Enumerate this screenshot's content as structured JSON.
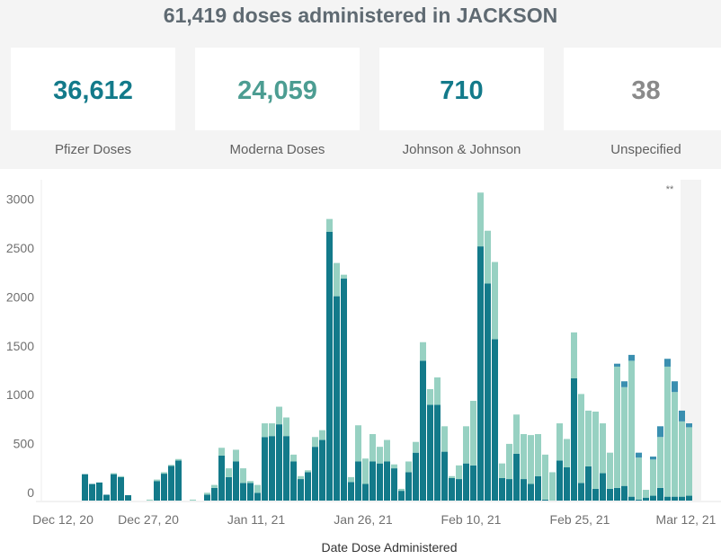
{
  "header": {
    "title": "61,419 doses administered in JACKSON"
  },
  "cards": [
    {
      "value": "36,612",
      "label": "Pfizer Doses",
      "color": "#137a8a"
    },
    {
      "value": "24,059",
      "label": "Moderna Doses",
      "color": "#4c9d92"
    },
    {
      "value": "710",
      "label": "Johnson & Johnson",
      "color": "#137a8a"
    },
    {
      "value": "38",
      "label": "Unspecified",
      "color": "#8a8a8a"
    }
  ],
  "chart_data": {
    "type": "bar",
    "stacked": true,
    "title": "",
    "xlabel": "Date Dose Administered",
    "ylabel": "",
    "ylim": [
      0,
      3300
    ],
    "y_ticks": [
      0,
      500,
      1000,
      1500,
      2000,
      2500,
      3000
    ],
    "x_tick_labels": [
      "Dec 12, 20",
      "Dec 27, 20",
      "Jan 11, 21",
      "Jan 26, 21",
      "Feb 10, 21",
      "Feb 25, 21",
      "Mar 12, 21"
    ],
    "annotation": "**",
    "shaded_region": "last 5 days (incomplete data)",
    "colors": {
      "pfizer": "#137a8a",
      "moderna": "#97d1c2",
      "jj": "#3a8fb0"
    },
    "series_names": [
      "Pfizer",
      "Moderna",
      "Johnson & Johnson"
    ],
    "bars": [
      {
        "i": 0,
        "p": 270,
        "m": 0,
        "j": 0
      },
      {
        "i": 1,
        "p": 170,
        "m": 0,
        "j": 0
      },
      {
        "i": 2,
        "p": 185,
        "m": 0,
        "j": 0
      },
      {
        "i": 3,
        "p": 60,
        "m": 0,
        "j": 0
      },
      {
        "i": 4,
        "p": 270,
        "m": 10,
        "j": 0
      },
      {
        "i": 5,
        "p": 240,
        "m": 10,
        "j": 0
      },
      {
        "i": 6,
        "p": 55,
        "m": 0,
        "j": 0
      },
      {
        "i": 9,
        "p": 0,
        "m": 10,
        "j": 0
      },
      {
        "i": 10,
        "p": 200,
        "m": 15,
        "j": 0
      },
      {
        "i": 11,
        "p": 275,
        "m": 15,
        "j": 0
      },
      {
        "i": 12,
        "p": 355,
        "m": 10,
        "j": 0
      },
      {
        "i": 13,
        "p": 410,
        "m": 15,
        "j": 0
      },
      {
        "i": 15,
        "p": 0,
        "m": 10,
        "j": 0
      },
      {
        "i": 17,
        "p": 60,
        "m": 20,
        "j": 0
      },
      {
        "i": 18,
        "p": 130,
        "m": 30,
        "j": 0
      },
      {
        "i": 19,
        "p": 460,
        "m": 80,
        "j": 0
      },
      {
        "i": 20,
        "p": 240,
        "m": 90,
        "j": 0
      },
      {
        "i": 21,
        "p": 400,
        "m": 120,
        "j": 0
      },
      {
        "i": 22,
        "p": 180,
        "m": 150,
        "j": 0
      },
      {
        "i": 23,
        "p": 180,
        "m": 20,
        "j": 0
      },
      {
        "i": 24,
        "p": 80,
        "m": 80,
        "j": 0
      },
      {
        "i": 25,
        "p": 650,
        "m": 140,
        "j": 0
      },
      {
        "i": 26,
        "p": 660,
        "m": 130,
        "j": 0
      },
      {
        "i": 27,
        "p": 780,
        "m": 180,
        "j": 0
      },
      {
        "i": 28,
        "p": 660,
        "m": 190,
        "j": 0
      },
      {
        "i": 29,
        "p": 400,
        "m": 70,
        "j": 0
      },
      {
        "i": 30,
        "p": 220,
        "m": 30,
        "j": 0
      },
      {
        "i": 31,
        "p": 290,
        "m": 20,
        "j": 0
      },
      {
        "i": 32,
        "p": 550,
        "m": 100,
        "j": 0
      },
      {
        "i": 33,
        "p": 620,
        "m": 100,
        "j": 0
      },
      {
        "i": 34,
        "p": 2750,
        "m": 130,
        "j": 0
      },
      {
        "i": 35,
        "p": 2090,
        "m": 340,
        "j": 0
      },
      {
        "i": 36,
        "p": 2270,
        "m": 40,
        "j": 0
      },
      {
        "i": 37,
        "p": 190,
        "m": 50,
        "j": 0
      },
      {
        "i": 38,
        "p": 400,
        "m": 370,
        "j": 0
      },
      {
        "i": 39,
        "p": 170,
        "m": 260,
        "j": 0
      },
      {
        "i": 40,
        "p": 400,
        "m": 280,
        "j": 0
      },
      {
        "i": 41,
        "p": 380,
        "m": 170,
        "j": 0
      },
      {
        "i": 42,
        "p": 400,
        "m": 220,
        "j": 0
      },
      {
        "i": 43,
        "p": 330,
        "m": 40,
        "j": 0
      },
      {
        "i": 44,
        "p": 100,
        "m": 20,
        "j": 0
      },
      {
        "i": 45,
        "p": 290,
        "m": 110,
        "j": 0
      },
      {
        "i": 46,
        "p": 490,
        "m": 110,
        "j": 0
      },
      {
        "i": 47,
        "p": 1430,
        "m": 190,
        "j": 0
      },
      {
        "i": 48,
        "p": 980,
        "m": 160,
        "j": 0
      },
      {
        "i": 49,
        "p": 980,
        "m": 280,
        "j": 0
      },
      {
        "i": 50,
        "p": 500,
        "m": 260,
        "j": 0
      },
      {
        "i": 51,
        "p": 230,
        "m": 20,
        "j": 0
      },
      {
        "i": 52,
        "p": 220,
        "m": 140,
        "j": 0
      },
      {
        "i": 53,
        "p": 380,
        "m": 380,
        "j": 0
      },
      {
        "i": 54,
        "p": 360,
        "m": 660,
        "j": 0
      },
      {
        "i": 55,
        "p": 2600,
        "m": 550,
        "j": 0
      },
      {
        "i": 56,
        "p": 2220,
        "m": 540,
        "j": 0
      },
      {
        "i": 57,
        "p": 1650,
        "m": 790,
        "j": 0
      },
      {
        "i": 58,
        "p": 230,
        "m": 150,
        "j": 0
      },
      {
        "i": 59,
        "p": 220,
        "m": 360,
        "j": 0
      },
      {
        "i": 60,
        "p": 480,
        "m": 400,
        "j": 0
      },
      {
        "i": 61,
        "p": 220,
        "m": 460,
        "j": 0
      },
      {
        "i": 62,
        "p": 170,
        "m": 500,
        "j": 0
      },
      {
        "i": 63,
        "p": 250,
        "m": 430,
        "j": 0
      },
      {
        "i": 64,
        "p": 10,
        "m": 460,
        "j": 0
      },
      {
        "i": 65,
        "p": 0,
        "m": 290,
        "j": 0
      },
      {
        "i": 66,
        "p": 410,
        "m": 380,
        "j": 0
      },
      {
        "i": 67,
        "p": 340,
        "m": 290,
        "j": 0
      },
      {
        "i": 68,
        "p": 1250,
        "m": 470,
        "j": 0
      },
      {
        "i": 69,
        "p": 180,
        "m": 910,
        "j": 0
      },
      {
        "i": 70,
        "p": 350,
        "m": 570,
        "j": 0
      },
      {
        "i": 71,
        "p": 120,
        "m": 790,
        "j": 0
      },
      {
        "i": 72,
        "p": 280,
        "m": 510,
        "j": 0
      },
      {
        "i": 73,
        "p": 120,
        "m": 370,
        "j": 0
      },
      {
        "i": 74,
        "p": 130,
        "m": 1240,
        "j": 30
      },
      {
        "i": 75,
        "p": 150,
        "m": 1010,
        "j": 60
      },
      {
        "i": 76,
        "p": 40,
        "m": 1390,
        "j": 60
      },
      {
        "i": 77,
        "p": 10,
        "m": 430,
        "j": 50
      },
      {
        "i": 78,
        "p": 30,
        "m": 80,
        "j": 0
      },
      {
        "i": 79,
        "p": 50,
        "m": 370,
        "j": 30
      },
      {
        "i": 80,
        "p": 130,
        "m": 520,
        "j": 110
      },
      {
        "i": 81,
        "p": 40,
        "m": 1330,
        "j": 80
      },
      {
        "i": 82,
        "p": 40,
        "m": 1070,
        "j": 110
      },
      {
        "i": 83,
        "p": 40,
        "m": 770,
        "j": 110
      },
      {
        "i": 84,
        "p": 50,
        "m": 700,
        "j": 40
      }
    ]
  }
}
